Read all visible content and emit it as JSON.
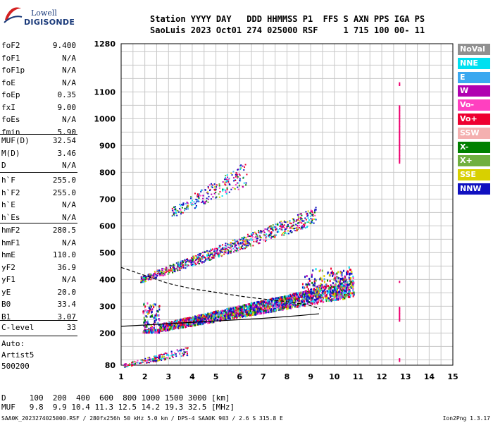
{
  "logo": {
    "line1": "Lowell",
    "line2": "DIGISONDE"
  },
  "header": {
    "row1": "Station YYYY DAY   DDD HHMMSS P1  FFS S AXN PPS IGA PS",
    "row2": "SaoLuis 2023 Oct01 274 025000 RSF     1 715 100 00- 11"
  },
  "params": {
    "group1": [
      {
        "name": "foF2",
        "value": "9.400"
      },
      {
        "name": "foF1",
        "value": "N/A"
      },
      {
        "name": "foF1p",
        "value": "N/A"
      },
      {
        "name": "foE",
        "value": "N/A"
      },
      {
        "name": "foEp",
        "value": "0.35"
      },
      {
        "name": "fxI",
        "value": "9.00"
      },
      {
        "name": "foEs",
        "value": "N/A"
      },
      {
        "name": "fmin",
        "value": "5.90"
      }
    ],
    "group2": [
      {
        "name": "MUF(D)",
        "value": "32.54"
      },
      {
        "name": "M(D)",
        "value": "3.46"
      },
      {
        "name": "D",
        "value": "N/A"
      }
    ],
    "group3": [
      {
        "name": "h`F",
        "value": "255.0"
      },
      {
        "name": "h`F2",
        "value": "255.0"
      },
      {
        "name": "h`E",
        "value": "N/A"
      },
      {
        "name": "h`Es",
        "value": "N/A"
      }
    ],
    "group4": [
      {
        "name": "hmF2",
        "value": "280.5"
      },
      {
        "name": "hmF1",
        "value": "N/A"
      },
      {
        "name": "hmE",
        "value": "110.0"
      },
      {
        "name": "yF2",
        "value": "36.9"
      },
      {
        "name": "yF1",
        "value": "N/A"
      },
      {
        "name": "yE",
        "value": "20.0"
      },
      {
        "name": "B0",
        "value": "33.4"
      },
      {
        "name": "B1",
        "value": "3.07"
      }
    ],
    "clevel": {
      "name": "C-level",
      "value": "33"
    },
    "auto": [
      "Auto:",
      "Artist5",
      "500200"
    ]
  },
  "legend": [
    {
      "label": "NoVal",
      "color": "#909090"
    },
    {
      "label": "NNE",
      "color": "#00e0f0"
    },
    {
      "label": "E",
      "color": "#3aa8f0"
    },
    {
      "label": "W",
      "color": "#b000b0"
    },
    {
      "label": "Vo-",
      "color": "#ff40c0"
    },
    {
      "label": "Vo+",
      "color": "#ee0030"
    },
    {
      "label": "SSW",
      "color": "#f4b0b0"
    },
    {
      "label": "X-",
      "color": "#008000"
    },
    {
      "label": "X+",
      "color": "#70b040"
    },
    {
      "label": "SSE",
      "color": "#d8d000"
    },
    {
      "label": "NNW",
      "color": "#1010c0"
    }
  ],
  "footer": {
    "d_row": "D     100  200  400  600  800 1000 1500 3000 [km]",
    "muf_row": "MUF   9.8  9.9 10.4 11.3 12.5 14.2 19.3 32.5 [MHz]",
    "info": "SAA0K_2023274025000.RSF / 280fx256h 50 kHz 5.0 km / DPS-4 SAA0K 903 / 2.6 S 315.8 E",
    "version": "Ion2Png 1.3.17"
  },
  "chart_data": {
    "type": "scatter",
    "xlim": [
      1,
      15
    ],
    "x_ticks": [
      1,
      2,
      3,
      4,
      5,
      6,
      7,
      8,
      9,
      10,
      11,
      12,
      13,
      14,
      15
    ],
    "y_ticks": [
      80,
      200,
      300,
      400,
      500,
      600,
      700,
      800,
      900,
      1000,
      1100,
      1280
    ],
    "ylim": [
      80,
      1280
    ],
    "grid": true,
    "legend_position": "right",
    "traces": [
      {
        "name": "F2 trace o/x",
        "x_range": [
          1.9,
          10.8
        ],
        "y_start": 210,
        "y_end": 370
      },
      {
        "name": "2nd hop",
        "x_range": [
          1.8,
          9.2
        ],
        "y_start": 400,
        "y_end": 640
      },
      {
        "name": "3rd hop",
        "x_range": [
          3.1,
          6.3
        ],
        "y_start": 650,
        "y_end": 800
      },
      {
        "name": "low echoes",
        "x_range": [
          1.1,
          3.8
        ],
        "y_start": 80,
        "y_end": 135
      }
    ],
    "profile_solid": [
      [
        1,
        225
      ],
      [
        3,
        235
      ],
      [
        5,
        245
      ],
      [
        7,
        255
      ],
      [
        8.5,
        265
      ],
      [
        9.35,
        272
      ]
    ],
    "profile_dashed": [
      [
        1,
        445
      ],
      [
        2,
        415
      ],
      [
        3,
        385
      ],
      [
        4,
        365
      ],
      [
        5,
        352
      ],
      [
        6,
        338
      ],
      [
        7,
        327
      ],
      [
        8,
        317
      ],
      [
        8.9,
        305
      ],
      [
        9.4,
        290
      ]
    ]
  }
}
